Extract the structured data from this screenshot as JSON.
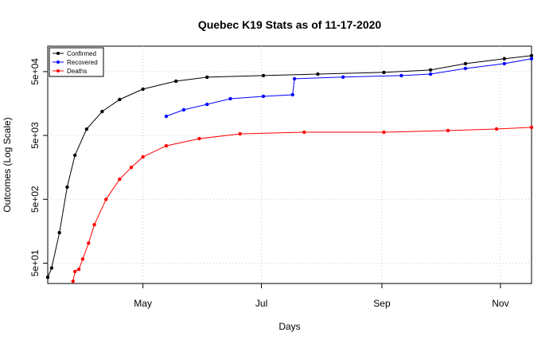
{
  "chart_data": {
    "type": "line",
    "title": "Quebec K19 Stats as of 11-17-2020",
    "x_label": "Days",
    "y_label": "Outcomes (Log Scale)",
    "log_y": true,
    "grid": true,
    "legend": "top-left",
    "xlim": [
      "2020-03-13",
      "2020-11-17"
    ],
    "xticks": [
      {
        "value": "2020-05-01",
        "label": "May"
      },
      {
        "value": "2020-07-01",
        "label": "Jul"
      },
      {
        "value": "2020-09-01",
        "label": "Sep"
      },
      {
        "value": "2020-11-01",
        "label": "Nov"
      }
    ],
    "ylim": [
      24,
      125000
    ],
    "yticks": [
      {
        "value": 50,
        "label": "5e+01"
      },
      {
        "value": 500,
        "label": "5e+02"
      },
      {
        "value": 5000,
        "label": "5e+03"
      },
      {
        "value": 50000,
        "label": "5e+04"
      }
    ],
    "series": [
      {
        "name": "Confirmed",
        "color": "#000000",
        "x": [
          "2020-03-13",
          "2020-03-15",
          "2020-03-19",
          "2020-03-23",
          "2020-03-27",
          "2020-04-02",
          "2020-04-10",
          "2020-04-19",
          "2020-05-01",
          "2020-05-18",
          "2020-06-03",
          "2020-07-02",
          "2020-07-30",
          "2020-09-02",
          "2020-09-26",
          "2020-10-14",
          "2020-11-03",
          "2020-11-17"
        ],
        "values": [
          30,
          42,
          150,
          775,
          2450,
          6270,
          11850,
          18250,
          26550,
          35400,
          40900,
          43300,
          45700,
          48600,
          53000,
          66650,
          79500,
          88700
        ]
      },
      {
        "name": "Recovered",
        "color": "#0000ff",
        "x": [
          "2020-05-13",
          "2020-05-22",
          "2020-06-03",
          "2020-06-15",
          "2020-07-02",
          "2020-07-17",
          "2020-07-18",
          "2020-08-12",
          "2020-09-11",
          "2020-09-26",
          "2020-10-14",
          "2020-11-03",
          "2020-11-17"
        ],
        "values": [
          9975,
          12600,
          15350,
          18800,
          20500,
          21700,
          38600,
          41000,
          43300,
          45700,
          56000,
          66650,
          79500
        ]
      },
      {
        "name": "Deaths",
        "color": "#ff0000",
        "x": [
          "2020-03-26",
          "2020-03-27",
          "2020-03-29",
          "2020-03-31",
          "2020-04-03",
          "2020-04-06",
          "2020-04-12",
          "2020-04-19",
          "2020-04-25",
          "2020-05-01",
          "2020-05-13",
          "2020-05-30",
          "2020-06-20",
          "2020-07-23",
          "2020-09-02",
          "2020-10-05",
          "2020-10-30",
          "2020-11-17"
        ],
        "values": [
          26,
          37,
          40,
          58,
          103,
          200,
          500,
          1030,
          1580,
          2300,
          3440,
          4460,
          5300,
          5620,
          5620,
          5960,
          6310,
          6690
        ]
      }
    ]
  }
}
